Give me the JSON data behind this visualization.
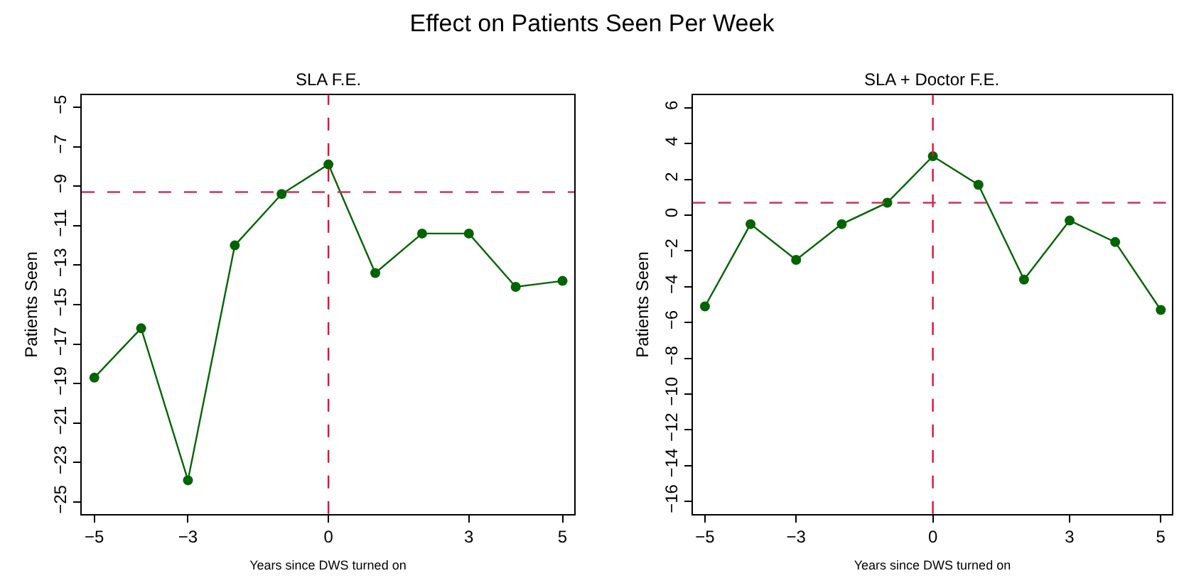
{
  "chart_data": [
    {
      "type": "line",
      "title": "Effect on Patients Seen Per Week",
      "subtitle": "SLA F.E.",
      "xlabel": "Years since DWS turned on",
      "ylabel": "Patients Seen",
      "x": [
        -5,
        -4,
        -3,
        -2,
        -1,
        0,
        1,
        2,
        3,
        4,
        5
      ],
      "values": [
        -18.7,
        -16.2,
        -23.9,
        -12.0,
        -9.4,
        -7.9,
        -13.4,
        -11.4,
        -11.4,
        -14.1,
        -13.8
      ],
      "color": "#006400",
      "marker": "circle",
      "line_style": "solid",
      "xlim": [
        -5.27,
        5.25
      ],
      "xticks": [
        -5,
        -3,
        0,
        3,
        5
      ],
      "ylim": [
        -25.6,
        -4.4
      ],
      "yticks": [
        -25,
        -23,
        -21,
        -19,
        -17,
        -15,
        -13,
        -11,
        -9,
        -7,
        -5
      ],
      "ref_lines": [
        {
          "axis": "x",
          "value": 0,
          "color": "#e0103c",
          "line_style": "dashed"
        },
        {
          "axis": "y",
          "value": -9.3,
          "color": "#c8345c",
          "line_style": "dashed"
        }
      ]
    },
    {
      "type": "line",
      "subtitle": "SLA + Doctor F.E.",
      "xlabel": "Years since DWS turned on",
      "ylabel": "Patients Seen",
      "x": [
        -5,
        -4,
        -3,
        -2,
        -1,
        0,
        1,
        2,
        3,
        4,
        5
      ],
      "values": [
        -5.1,
        -0.5,
        -2.5,
        -0.5,
        0.7,
        3.3,
        1.7,
        -3.6,
        -0.3,
        -1.5,
        -5.3
      ],
      "color": "#006400",
      "marker": "circle",
      "line_style": "solid",
      "xlim": [
        -5.27,
        5.25
      ],
      "xticks": [
        -5,
        -3,
        0,
        3,
        5
      ],
      "ylim": [
        -16.7,
        6.7
      ],
      "yticks": [
        -16,
        -14,
        -12,
        -10,
        -8,
        -6,
        -4,
        -2,
        0,
        2,
        4,
        6
      ],
      "ref_lines": [
        {
          "axis": "x",
          "value": 0,
          "color": "#e0103c",
          "line_style": "dashed"
        },
        {
          "axis": "y",
          "value": 0.7,
          "color": "#c8345c",
          "line_style": "dashed"
        }
      ]
    }
  ]
}
